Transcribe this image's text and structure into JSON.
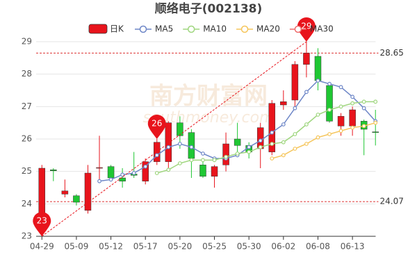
{
  "chart_data": {
    "type": "candlestick",
    "title": "顺络电子(002138)",
    "watermark": [
      "南方财富网",
      "southmoney.com"
    ],
    "categories": [
      "04-29",
      null,
      null,
      "05-09",
      null,
      null,
      "05-12",
      null,
      null,
      "05-17",
      null,
      null,
      "05-20",
      null,
      null,
      "05-25",
      null,
      null,
      "05-30",
      null,
      null,
      "06-02",
      null,
      null,
      "06-08",
      null,
      null,
      "06-13",
      null,
      null
    ],
    "candle_name": "日K",
    "up_color": "#e8141c",
    "down_color": "#1fc733",
    "open": [
      23.4,
      25.05,
      24.3,
      24.25,
      23.8,
      25.1,
      25.15,
      24.8,
      24.92,
      24.7,
      25.3,
      25.3,
      26.5,
      26.2,
      25.2,
      24.85,
      25.2,
      26.0,
      25.8,
      25.7,
      25.6,
      27.05,
      27.2,
      28.3,
      28.55,
      27.65,
      26.4,
      26.4,
      26.55,
      26.22
    ],
    "close": [
      25.1,
      25.02,
      24.4,
      24.05,
      24.95,
      25.12,
      24.8,
      24.7,
      24.88,
      25.3,
      25.9,
      26.5,
      26.1,
      25.4,
      24.85,
      25.15,
      25.85,
      25.8,
      25.6,
      26.35,
      27.1,
      27.15,
      28.3,
      28.65,
      27.8,
      26.55,
      26.7,
      26.9,
      26.3,
      26.2
    ],
    "high": [
      25.2,
      25.1,
      24.75,
      24.3,
      25.2,
      26.1,
      25.2,
      25.1,
      25.6,
      25.4,
      26.0,
      26.55,
      26.7,
      26.3,
      25.4,
      25.2,
      26.2,
      26.5,
      25.9,
      26.5,
      27.2,
      27.5,
      28.4,
      29.0,
      28.8,
      27.7,
      26.8,
      27.0,
      26.6,
      26.9
    ],
    "low": [
      23.4,
      24.7,
      24.2,
      23.95,
      23.7,
      24.7,
      24.7,
      24.5,
      24.8,
      24.6,
      25.2,
      25.1,
      25.7,
      24.8,
      24.8,
      24.5,
      25.0,
      25.5,
      25.4,
      25.1,
      25.5,
      26.9,
      27.0,
      27.9,
      27.5,
      26.5,
      26.1,
      26.1,
      25.5,
      25.8
    ],
    "series": [
      {
        "name": "MA5",
        "color": "#6d86c7",
        "values": [
          null,
          null,
          null,
          null,
          null,
          24.7,
          24.75,
          24.9,
          24.95,
          25.15,
          25.5,
          25.75,
          25.85,
          25.75,
          25.55,
          25.4,
          25.4,
          25.5,
          25.75,
          25.95,
          26.2,
          26.45,
          26.95,
          27.45,
          27.8,
          27.7,
          27.6,
          27.3,
          26.95,
          26.55
        ]
      },
      {
        "name": "MA10",
        "color": "#9fd67e",
        "values": [
          null,
          null,
          null,
          null,
          null,
          null,
          null,
          null,
          null,
          null,
          24.95,
          25.05,
          25.25,
          25.35,
          25.35,
          25.35,
          25.45,
          25.55,
          25.6,
          25.75,
          25.85,
          25.9,
          26.15,
          26.45,
          26.75,
          26.9,
          27.0,
          27.1,
          27.15,
          27.15
        ]
      },
      {
        "name": "MA20",
        "color": "#f5c55a",
        "values": [
          null,
          null,
          null,
          null,
          null,
          null,
          null,
          null,
          null,
          null,
          null,
          null,
          null,
          null,
          null,
          null,
          null,
          null,
          null,
          null,
          25.4,
          25.5,
          25.7,
          25.85,
          26.05,
          26.15,
          26.25,
          26.35,
          26.4,
          26.5
        ]
      },
      {
        "name": "MA30",
        "color": "#ef6a6a",
        "values": [
          null,
          null,
          null,
          null,
          null,
          null,
          null,
          null,
          null,
          null,
          null,
          null,
          null,
          null,
          null,
          null,
          null,
          null,
          null,
          null,
          null,
          null,
          null,
          null,
          null,
          null,
          null,
          null,
          null,
          null
        ]
      }
    ],
    "ylim": [
      23,
      29
    ],
    "yticks": [
      23,
      24,
      25,
      26,
      27,
      28,
      29
    ],
    "grid": true,
    "ref_lines": [
      28.65,
      24.07
    ],
    "pins": [
      23,
      26,
      29
    ]
  }
}
